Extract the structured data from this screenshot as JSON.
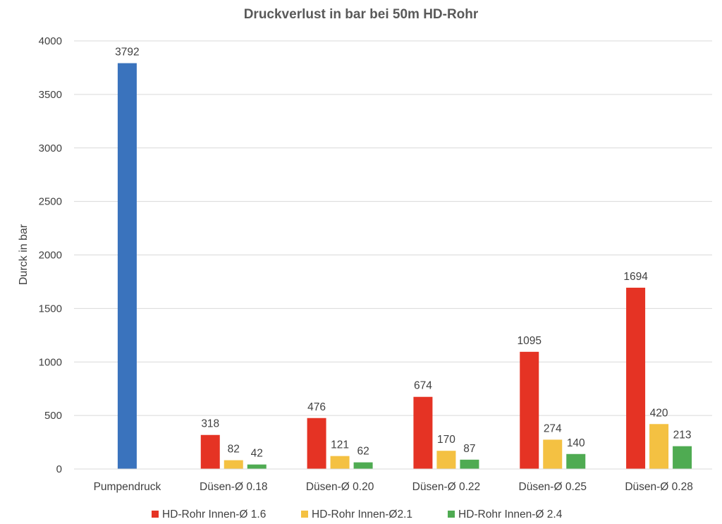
{
  "chart_data": {
    "type": "bar",
    "title": "Druckverlust in bar bei 50m HD-Rohr",
    "xlabel": "",
    "ylabel": "Durck in bar",
    "ylim": [
      0,
      4000
    ],
    "yticks": [
      0,
      500,
      1000,
      1500,
      2000,
      2500,
      3000,
      3500,
      4000
    ],
    "grid": true,
    "legend_position": "bottom",
    "categories": [
      "Pumpendruck",
      "Düsen-Ø 0.18",
      "Düsen-Ø 0.20",
      "Düsen-Ø 0.22",
      "Düsen-Ø 0.25",
      "Düsen-Ø 0.28"
    ],
    "series": [
      {
        "name": "",
        "color": "#3a73bd",
        "values": [
          3792,
          null,
          null,
          null,
          null,
          null
        ]
      },
      {
        "name": "HD-Rohr Innen-Ø 1.6",
        "color": "#e53324",
        "values": [
          null,
          318,
          476,
          674,
          1095,
          1694
        ]
      },
      {
        "name": "HD-Rohr Innen-Ø2.1",
        "color": "#f4c142",
        "values": [
          null,
          82,
          121,
          170,
          274,
          420
        ]
      },
      {
        "name": "HD-Rohr Innen-Ø 2.4",
        "color": "#4fab52",
        "values": [
          null,
          42,
          62,
          87,
          140,
          213
        ]
      }
    ],
    "data_labels": true
  }
}
